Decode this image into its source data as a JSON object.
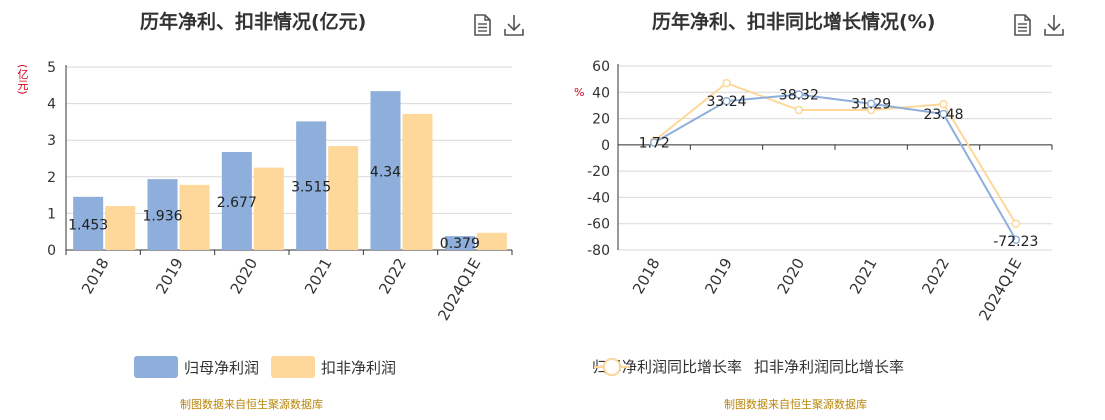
{
  "left_chart": {
    "title": "历年净利、扣非情况(亿元)",
    "unit": "(亿元)",
    "legend": [
      "归母净利润",
      "扣非净利润"
    ],
    "source": "制图数据来自恒生聚源数据库"
  },
  "right_chart": {
    "title": "历年净利、扣非同比增长情况(%)",
    "unit": "%",
    "legend": [
      "归母净利润同比增长率",
      "扣非净利润同比增长率"
    ],
    "source": "制图数据来自恒生聚源数据库"
  },
  "colors": {
    "blue": "#8eafdb",
    "orange": "#fdd89a",
    "grid": "#d9d9d9",
    "axis": "#333333"
  },
  "icons": {
    "data_view": "document-icon",
    "download": "download-icon"
  },
  "chart_data": [
    {
      "type": "bar",
      "title": "历年净利、扣非情况(亿元)",
      "ylabel": "(亿元)",
      "categories": [
        "2018",
        "2019",
        "2020",
        "2021",
        "2022",
        "2024Q1E"
      ],
      "ylim": [
        0,
        5
      ],
      "yticks": [
        0,
        1,
        2,
        3,
        4,
        5
      ],
      "series": [
        {
          "name": "归母净利润",
          "values": [
            1.453,
            1.936,
            2.677,
            3.515,
            4.34,
            0.379
          ],
          "labels": [
            "1.453",
            "1.936",
            "2.677",
            "3.515",
            "4.34",
            "0.379"
          ]
        },
        {
          "name": "扣非净利润",
          "values": [
            1.2,
            1.78,
            2.25,
            2.84,
            3.72,
            0.47
          ]
        }
      ],
      "legend_position": "bottom",
      "grid": true
    },
    {
      "type": "line",
      "title": "历年净利、扣非同比增长情况(%)",
      "ylabel": "%",
      "categories": [
        "2018",
        "2019",
        "2020",
        "2021",
        "2022",
        "2024Q1E"
      ],
      "ylim": [
        -80,
        60
      ],
      "yticks": [
        60,
        40,
        20,
        0,
        -20,
        -40,
        -60,
        -80
      ],
      "series": [
        {
          "name": "归母净利润同比增长率",
          "values": [
            1.72,
            33.24,
            38.32,
            31.29,
            23.48,
            -72.23
          ],
          "labels": [
            "1.72",
            "33.24",
            "38.32",
            "31.29",
            "23.48",
            "-72.23"
          ]
        },
        {
          "name": "扣非净利润同比增长率",
          "values": [
            3.0,
            47.0,
            26.5,
            26.5,
            31.0,
            -60.0
          ]
        }
      ],
      "legend_position": "bottom",
      "grid": true
    }
  ]
}
